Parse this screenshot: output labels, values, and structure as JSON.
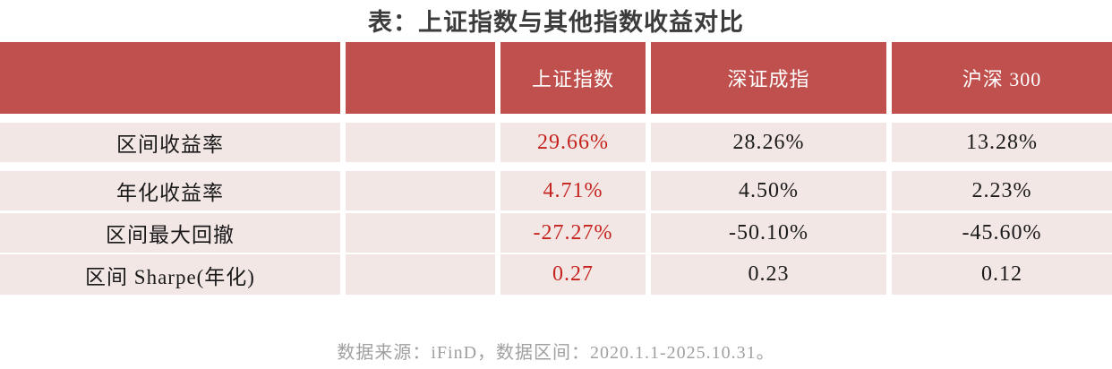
{
  "chart_data": {
    "type": "table",
    "title": "表：上证指数与其他指数收益对比",
    "columns": [
      "",
      "",
      "上证指数",
      "深证成指",
      "沪深 300"
    ],
    "rows": [
      {
        "label": "区间收益率",
        "values": [
          "29.66%",
          "28.26%",
          "13.28%"
        ]
      },
      {
        "label": "年化收益率",
        "values": [
          "4.71%",
          "4.50%",
          "2.23%"
        ]
      },
      {
        "label": "区间最大回撤",
        "values": [
          "-27.27%",
          "-50.10%",
          "-45.60%"
        ]
      },
      {
        "label": "区间 Sharpe(年化)",
        "values": [
          "0.27",
          "0.23",
          "0.12"
        ]
      }
    ],
    "highlighted_column": "上证指数"
  },
  "footer": "数据来源：iFinD，数据区间：2020.1.1-2025.10.31。",
  "colors": {
    "header_bg": "#c0504d",
    "header_text": "#ffffff",
    "row_bg": "#f2e7e5",
    "highlight_value_text": "#c5231e",
    "body_text": "#1a1a1a",
    "title_text": "#3c3c3c",
    "footer_text": "#a0a0a0"
  }
}
